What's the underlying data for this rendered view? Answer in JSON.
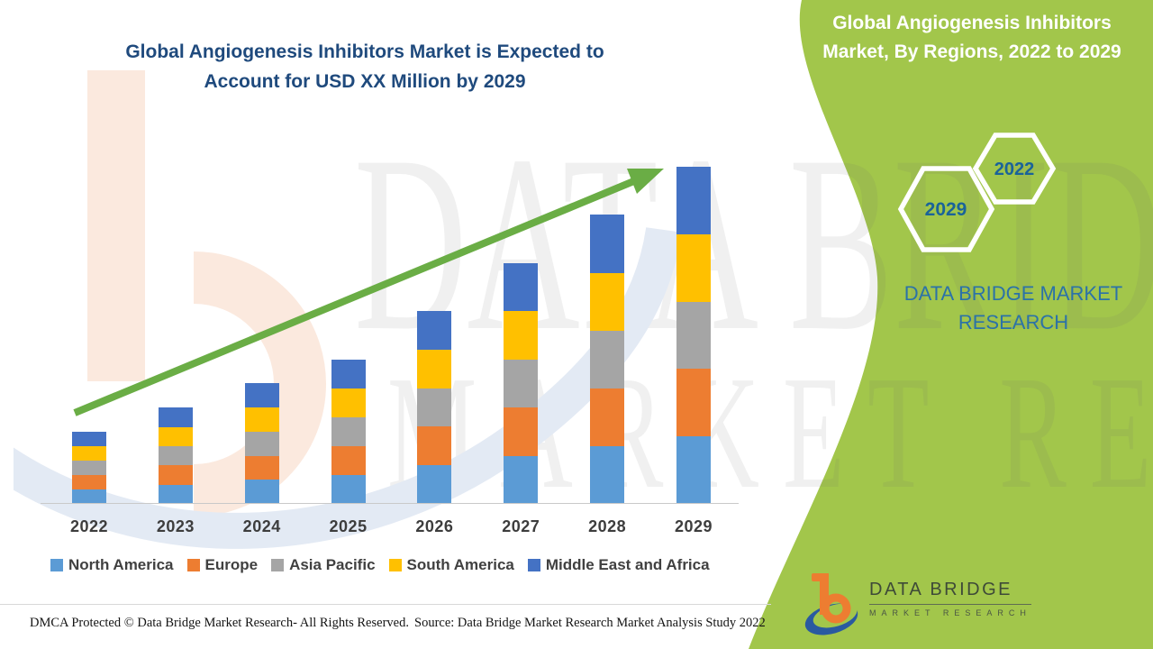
{
  "left_chart": {
    "title_line1": "Global Angiogenesis Inhibitors Market is Expected to",
    "title_line2": "Account for USD XX Million by 2029"
  },
  "chart_data": {
    "type": "stacked-bar",
    "title": "Global Angiogenesis Inhibitors Market is Expected to Account for USD XX Million by 2029",
    "categories": [
      "2022",
      "2023",
      "2024",
      "2025",
      "2026",
      "2027",
      "2028",
      "2029"
    ],
    "series": [
      {
        "name": "North America",
        "color": "#5B9BD5",
        "values": [
          0.6,
          0.8,
          1.0,
          1.2,
          1.6,
          2.0,
          2.4,
          2.8
        ]
      },
      {
        "name": "Europe",
        "color": "#ED7D31",
        "values": [
          0.6,
          0.8,
          1.0,
          1.2,
          1.6,
          2.0,
          2.4,
          2.8
        ]
      },
      {
        "name": "Asia Pacific",
        "color": "#A5A5A5",
        "values": [
          0.6,
          0.8,
          1.0,
          1.2,
          1.6,
          2.0,
          2.4,
          2.8
        ]
      },
      {
        "name": "South America",
        "color": "#FFC000",
        "values": [
          0.6,
          0.8,
          1.0,
          1.2,
          1.6,
          2.0,
          2.4,
          2.8
        ]
      },
      {
        "name": "Middle East and Africa",
        "color": "#4472C4",
        "values": [
          0.6,
          0.8,
          1.0,
          1.2,
          1.6,
          2.0,
          2.4,
          2.8
        ]
      }
    ],
    "totals": [
      3,
      4,
      5,
      6,
      8,
      10,
      12,
      14
    ],
    "ylabel": "",
    "xlabel": "",
    "value_note": "values undisclosed (USD XX Million), bars shown as relative index",
    "ylim": [
      0,
      14
    ],
    "gridlines": false,
    "legend_position": "bottom",
    "trend_arrow": {
      "present": true,
      "color": "#6AAD45"
    }
  },
  "right_panel": {
    "title_line1": "Global Angiogenesis Inhibitors",
    "title_line2": "Market, By Regions, 2022 to 2029",
    "hexagon_top_year": "2022",
    "hexagon_bottom_year": "2029",
    "caption_line1": "DATA BRIDGE MARKET",
    "caption_line2": "RESEARCH",
    "bg_color": "#A2C64B"
  },
  "branding": {
    "logo_name": "DATA BRIDGE",
    "logo_sub": "MARKET RESEARCH"
  },
  "watermark": {
    "line1": "DATA BRIDGE",
    "line2": "MARKET RESEARCH"
  },
  "footer": {
    "left": "DMCA Protected © Data Bridge Market Research- All Rights Reserved.",
    "right": "Source: Data Bridge Market Research Market Analysis Study 2022"
  }
}
